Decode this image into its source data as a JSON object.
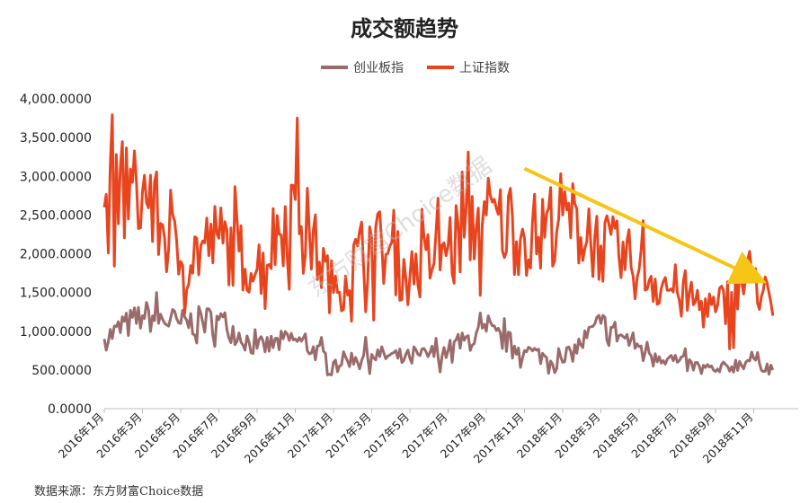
{
  "chart_data": {
    "type": "line",
    "title": "成交额趋势",
    "ylim": [
      0,
      4000
    ],
    "y_ticks": [
      "0.0000",
      "500.0000",
      "1,000.0000",
      "1,500.0000",
      "2,000.0000",
      "2,500.0000",
      "3,000.0000",
      "3,500.0000",
      "4,000.0000"
    ],
    "x_ticks": [
      "2016年1月",
      "2016年3月",
      "2016年5月",
      "2016年7月",
      "2016年9月",
      "2016年11月",
      "2017年1月",
      "2017年3月",
      "2017年5月",
      "2017年7月",
      "2017年9月",
      "2017年11月",
      "2018年1月",
      "2018年3月",
      "2018年5月",
      "2018年7月",
      "2018年9月",
      "2018年11月"
    ],
    "legend_position": "top-center",
    "grid": false,
    "series": [
      {
        "name": "创业板指",
        "color": "#9b6a6a",
        "x": [
          "2016年1月",
          "2016年3月",
          "2016年5月",
          "2016年7月",
          "2016年9月",
          "2016年11月",
          "2017年1月",
          "2017年3月",
          "2017年5月",
          "2017年7月",
          "2017年9月",
          "2017年11月",
          "2018年1月",
          "2018年3月",
          "2018年5月",
          "2018年7月",
          "2018年9月",
          "2018年11月",
          "2018年12月"
        ],
        "values": [
          900,
          1200,
          1100,
          1150,
          780,
          900,
          600,
          700,
          650,
          750,
          1000,
          750,
          600,
          1100,
          800,
          600,
          480,
          650,
          500
        ]
      },
      {
        "name": "上证指数",
        "color": "#e8451f",
        "x": [
          "2016年1月",
          "2016年3月",
          "2016年5月",
          "2016年7月",
          "2016年9月",
          "2016年11月",
          "2017年1月",
          "2017年3月",
          "2017年5月",
          "2017年7月",
          "2017年9月",
          "2017年11月",
          "2018年1月",
          "2018年3月",
          "2018年5月",
          "2018年7月",
          "2018年9月",
          "2018年11月",
          "2018年12月"
        ],
        "values": [
          2600,
          2800,
          1900,
          2200,
          1800,
          2700,
          1500,
          2200,
          1700,
          2100,
          2500,
          2200,
          2500,
          2100,
          1800,
          1500,
          1250,
          1750,
          1200
        ]
      }
    ],
    "annotations": [
      {
        "type": "arrow",
        "color": "#f5c518",
        "from": {
          "x": "2017年11月",
          "y": 3100
        },
        "to": {
          "x": "2018年11月",
          "y": 1700
        }
      }
    ],
    "watermark": "东方财富Choice数据",
    "source": "数据来源：东方财富Choice数据"
  }
}
